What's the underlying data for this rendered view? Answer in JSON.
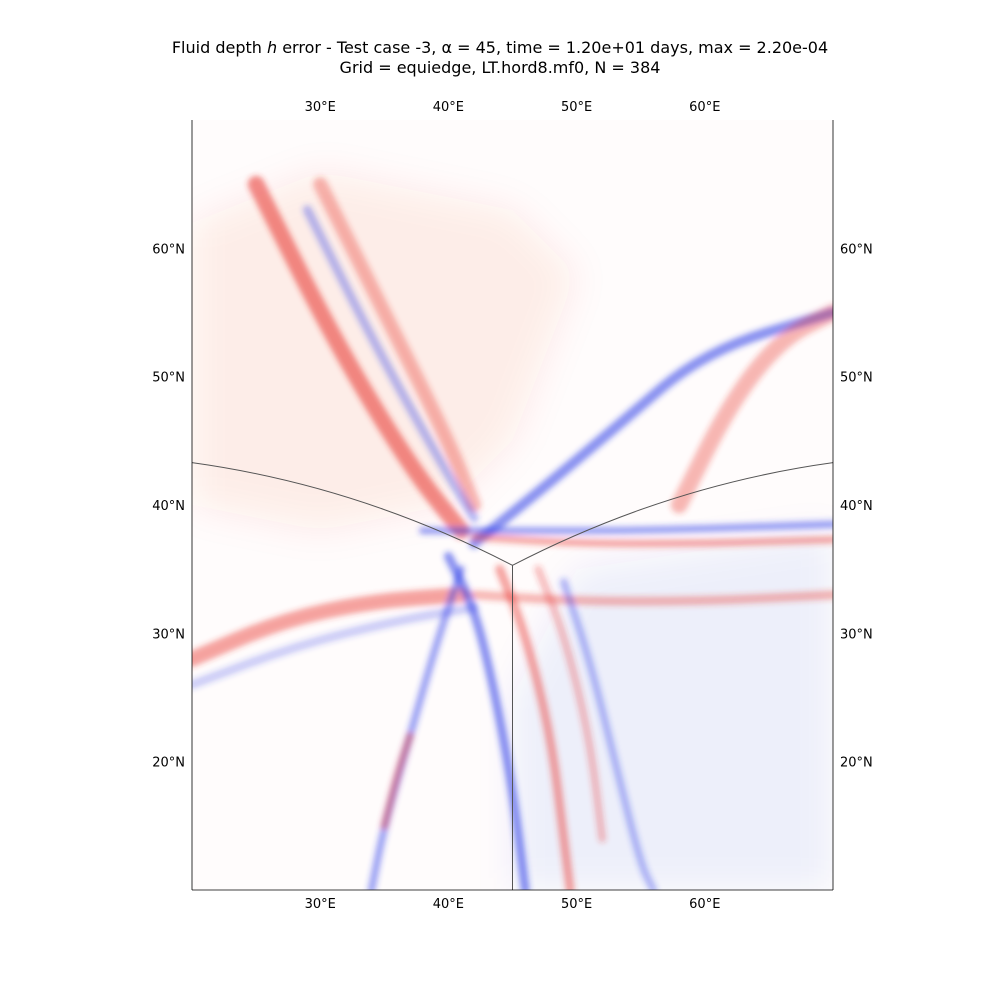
{
  "chart_data": {
    "type": "heatmap",
    "title_line1": "Fluid depth h error - Test case -3, α = 45, time = 1.20e+01 days, max = 2.20e-04",
    "title_line2": "Grid = equiedge, LT.hord8.mf0, N = 384",
    "x_ticks": [
      "30°E",
      "40°E",
      "50°E",
      "60°E"
    ],
    "x_tick_values": [
      30,
      40,
      50,
      60
    ],
    "y_ticks": [
      "60°N",
      "50°N",
      "40°N",
      "30°N",
      "20°N"
    ],
    "y_tick_values": [
      60,
      50,
      40,
      30,
      20
    ],
    "xlim": [
      20,
      70
    ],
    "ylim": [
      10,
      70
    ],
    "colors": {
      "positive": "#e8302a",
      "negative": "#2a3ae8",
      "grid_line": "#555555",
      "frame": "#000000"
    },
    "bands": [
      {
        "sign": 1,
        "strength": 0.55,
        "points": [
          [
            25,
            65
          ],
          [
            31,
            53
          ],
          [
            37,
            43
          ],
          [
            41,
            38
          ]
        ],
        "width": 1.3
      },
      {
        "sign": 1,
        "strength": 0.35,
        "points": [
          [
            30,
            65
          ],
          [
            35,
            55
          ],
          [
            40,
            45
          ],
          [
            42,
            40
          ]
        ],
        "width": 1.1
      },
      {
        "sign": -1,
        "strength": 0.35,
        "points": [
          [
            29,
            63
          ],
          [
            34,
            53
          ],
          [
            39,
            44
          ],
          [
            42,
            39
          ]
        ],
        "width": 0.7
      },
      {
        "sign": 1,
        "strength": 0.45,
        "points": [
          [
            20,
            28
          ],
          [
            27,
            31
          ],
          [
            34,
            32.5
          ],
          [
            41,
            33
          ]
        ],
        "width": 1.2
      },
      {
        "sign": -1,
        "strength": 0.25,
        "points": [
          [
            20,
            26
          ],
          [
            28,
            29
          ],
          [
            36,
            31
          ],
          [
            42,
            32
          ]
        ],
        "width": 0.7
      },
      {
        "sign": -1,
        "strength": 0.55,
        "points": [
          [
            42,
            37
          ],
          [
            47,
            41
          ],
          [
            53,
            46
          ],
          [
            60,
            52
          ],
          [
            70,
            55
          ]
        ],
        "width": 0.8
      },
      {
        "sign": 1,
        "strength": 0.35,
        "points": [
          [
            58,
            40
          ],
          [
            62,
            48
          ],
          [
            66,
            53
          ],
          [
            70,
            55
          ]
        ],
        "width": 1.3
      },
      {
        "sign": -1,
        "strength": 0.45,
        "points": [
          [
            38,
            38
          ],
          [
            45,
            38
          ],
          [
            55,
            38
          ],
          [
            70,
            38.5
          ]
        ],
        "width": 0.6
      },
      {
        "sign": 1,
        "strength": 0.4,
        "points": [
          [
            42,
            37.5
          ],
          [
            50,
            37
          ],
          [
            60,
            37
          ],
          [
            70,
            37.3
          ]
        ],
        "width": 0.6
      },
      {
        "sign": 1,
        "strength": 0.35,
        "points": [
          [
            42,
            33
          ],
          [
            50,
            32.5
          ],
          [
            60,
            32.5
          ],
          [
            70,
            33
          ]
        ],
        "width": 0.7
      },
      {
        "sign": -1,
        "strength": 0.55,
        "points": [
          [
            40,
            36
          ],
          [
            42,
            32
          ],
          [
            43.5,
            26
          ],
          [
            45,
            18
          ],
          [
            46,
            10
          ]
        ],
        "width": 0.7
      },
      {
        "sign": 1,
        "strength": 0.45,
        "points": [
          [
            44,
            35
          ],
          [
            46,
            30
          ],
          [
            48,
            22
          ],
          [
            49,
            14
          ],
          [
            49.5,
            10
          ]
        ],
        "width": 0.7
      },
      {
        "sign": -1,
        "strength": 0.45,
        "points": [
          [
            41,
            35
          ],
          [
            39,
            29
          ],
          [
            37,
            22
          ],
          [
            35,
            15
          ],
          [
            34,
            10
          ]
        ],
        "width": 0.6
      },
      {
        "sign": 1,
        "strength": 0.4,
        "points": [
          [
            37,
            22
          ],
          [
            36,
            19
          ],
          [
            35,
            15
          ]
        ],
        "width": 0.6
      },
      {
        "sign": -1,
        "strength": 0.35,
        "points": [
          [
            49,
            34
          ],
          [
            51,
            28
          ],
          [
            53,
            20
          ],
          [
            55,
            12
          ],
          [
            56,
            10
          ]
        ],
        "width": 0.6
      },
      {
        "sign": 1,
        "strength": 0.3,
        "points": [
          [
            47,
            35
          ],
          [
            49,
            30
          ],
          [
            51,
            22
          ],
          [
            52,
            14
          ]
        ],
        "width": 0.6
      }
    ],
    "tint_regions": [
      {
        "sign": 1,
        "strength": 0.08,
        "polygon": [
          [
            20,
            62
          ],
          [
            30,
            66
          ],
          [
            45,
            63
          ],
          [
            50,
            58
          ],
          [
            45,
            45
          ],
          [
            40,
            40
          ],
          [
            30,
            38
          ],
          [
            20,
            40
          ]
        ]
      },
      {
        "sign": -1,
        "strength": 0.07,
        "polygon": [
          [
            50,
            35
          ],
          [
            70,
            38
          ],
          [
            70,
            10
          ],
          [
            45,
            10
          ],
          [
            45,
            25
          ]
        ]
      }
    ]
  }
}
